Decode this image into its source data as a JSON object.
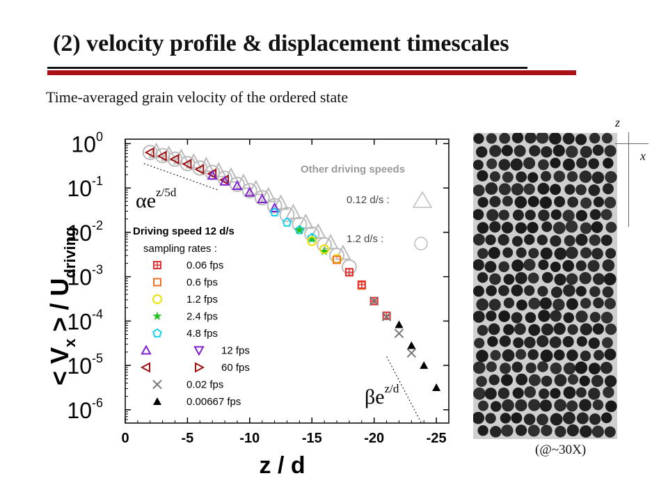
{
  "slide": {
    "title": "(2) velocity profile & displacement timescales",
    "subtitle": "Time-averaged  grain velocity of the ordered state"
  },
  "image_panel": {
    "caption": "(@~30X)",
    "axis_z": "z",
    "axis_x": "x"
  },
  "chart_data": {
    "type": "scatter",
    "xlabel": "z / d",
    "ylabel": "< V_x > / U_driving",
    "x_ticks": [
      "0",
      "-5",
      "-10",
      "-15",
      "-20",
      "-25"
    ],
    "y_ticks": [
      "10^0",
      "10^-1",
      "10^-2",
      "10^-3",
      "10^-4",
      "10^-5",
      "10^-6"
    ],
    "xlim": [
      0,
      -26
    ],
    "ylim_log10": [
      -6.3,
      0.1
    ],
    "y_scale": "log",
    "legend_main": {
      "header": "Driving speed  12 d/s",
      "subheader": "sampling rates :",
      "entries": [
        {
          "marker": "square-plus",
          "color": "#e03030",
          "label": "0.06 fps"
        },
        {
          "marker": "square",
          "color": "#f07020",
          "label": "0.6 fps"
        },
        {
          "marker": "circle",
          "color": "#f0e000",
          "label": "1.2 fps"
        },
        {
          "marker": "star",
          "color": "#20c020",
          "label": "2.4 fps"
        },
        {
          "marker": "pentagon",
          "color": "#10d0f0",
          "label": "4.8 fps"
        },
        {
          "marker": "tri-up+tri-down",
          "color": "#8020d0",
          "label": "12 fps"
        },
        {
          "marker": "tri-left+tri-right",
          "color": "#a01010",
          "label": "60 fps"
        },
        {
          "marker": "x",
          "color": "#777777",
          "label": "0.02 fps"
        },
        {
          "marker": "tri-filled",
          "color": "#000000",
          "label": "0.00667 fps"
        }
      ]
    },
    "legend_other": {
      "header": "Other driving speeds",
      "entries": [
        {
          "marker": "triangle",
          "color": "#bbbbbb",
          "label": "0.12 d/s :"
        },
        {
          "marker": "circle",
          "color": "#bbbbbb",
          "label": "1.2 d/s  :"
        }
      ]
    },
    "annotations": [
      {
        "text": "αe",
        "exponent": "z/5d"
      },
      {
        "text": "βe",
        "exponent": "z/d"
      }
    ],
    "series": [
      {
        "name": "1.2 d/s",
        "marker": "circle",
        "color": "#bbbbbb",
        "x": [
          -2,
          -3,
          -4,
          -5,
          -6,
          -7,
          -8,
          -9,
          -10,
          -11,
          -12,
          -13,
          -14,
          -15,
          -16,
          -17,
          -18
        ],
        "log10y": [
          -0.2,
          -0.27,
          -0.35,
          -0.45,
          -0.55,
          -0.65,
          -0.78,
          -0.92,
          -1.06,
          -1.22,
          -1.4,
          -1.6,
          -1.82,
          -2.04,
          -2.28,
          -2.52,
          -2.78
        ]
      },
      {
        "name": "0.12 d/s",
        "marker": "triangle",
        "color": "#bbbbbb",
        "x": [
          -2.5,
          -3.5,
          -4.5,
          -5.5,
          -6.5,
          -7.5,
          -8.5,
          -9.5,
          -10.5,
          -11.5,
          -12.5,
          -13.5,
          -14.5,
          -15.5,
          -16.5,
          -17.5
        ],
        "log10y": [
          -0.18,
          -0.25,
          -0.32,
          -0.42,
          -0.5,
          -0.62,
          -0.74,
          -0.88,
          -1.02,
          -1.18,
          -1.35,
          -1.56,
          -1.78,
          -2.0,
          -2.24,
          -2.48
        ]
      },
      {
        "name": "60 fps",
        "marker": "tri-left",
        "color": "#a01010",
        "x": [
          -2,
          -3,
          -4,
          -5,
          -6,
          -7,
          -8
        ],
        "log10y": [
          -0.2,
          -0.28,
          -0.35,
          -0.46,
          -0.58,
          -0.68,
          -0.82
        ]
      },
      {
        "name": "12 fps",
        "marker": "tri-up",
        "color": "#8020d0",
        "x": [
          -7,
          -8,
          -9,
          -10,
          -11,
          -12
        ],
        "log10y": [
          -0.72,
          -0.85,
          -0.95,
          -1.1,
          -1.25,
          -1.45
        ]
      },
      {
        "name": "4.8 fps",
        "marker": "pentagon",
        "color": "#10d0f0",
        "x": [
          -12,
          -13,
          -14,
          -15
        ],
        "log10y": [
          -1.55,
          -1.78,
          -1.95,
          -2.12
        ]
      },
      {
        "name": "2.4 fps",
        "marker": "star",
        "color": "#20c020",
        "x": [
          -14,
          -15,
          -16
        ],
        "log10y": [
          -1.95,
          -2.15,
          -2.43
        ]
      },
      {
        "name": "1.2 fps",
        "marker": "circle",
        "color": "#f0e000",
        "x": [
          -15,
          -16,
          -17
        ],
        "log10y": [
          -2.2,
          -2.38,
          -2.6
        ]
      },
      {
        "name": "0.6 fps",
        "marker": "square",
        "color": "#f07020",
        "x": [
          -17,
          -18,
          -19
        ],
        "log10y": [
          -2.62,
          -2.9,
          -3.2
        ]
      },
      {
        "name": "0.06 fps",
        "marker": "square-plus",
        "color": "#e03030",
        "x": [
          -18,
          -19,
          -20,
          -21
        ],
        "log10y": [
          -2.9,
          -3.18,
          -3.55,
          -3.88
        ]
      },
      {
        "name": "0.02 fps",
        "marker": "x",
        "color": "#777777",
        "x": [
          -20,
          -21,
          -22,
          -23
        ],
        "log10y": [
          -3.55,
          -3.9,
          -4.28,
          -4.72
        ]
      },
      {
        "name": "0.00667 fps",
        "marker": "tri-filled",
        "color": "#000000",
        "x": [
          -22,
          -23,
          -24,
          -25
        ],
        "log10y": [
          -4.08,
          -4.55,
          -5.0,
          -5.5
        ]
      }
    ]
  }
}
